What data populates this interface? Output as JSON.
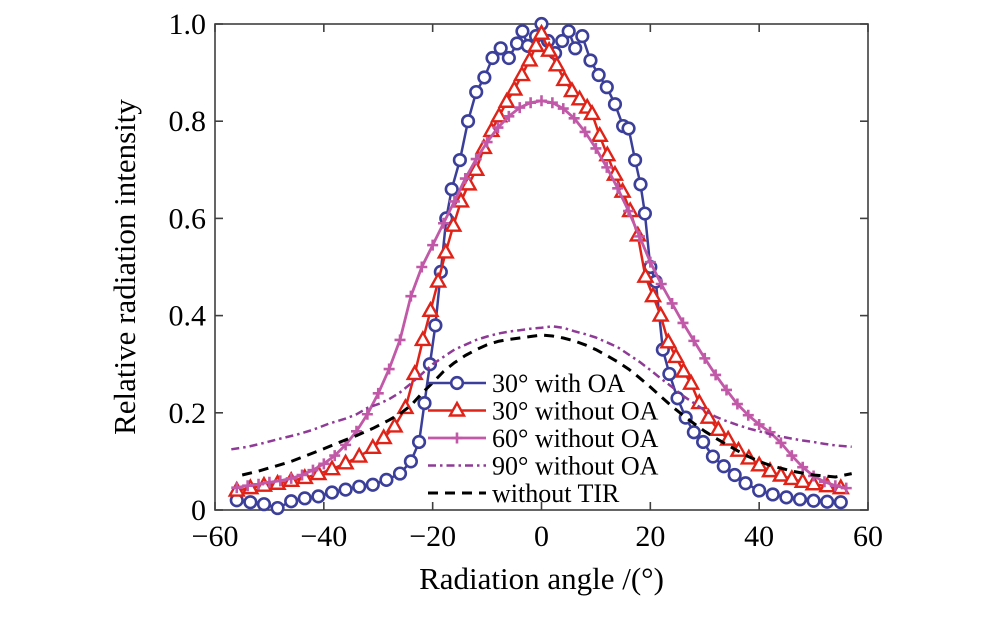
{
  "figure": {
    "background": "#ffffff"
  },
  "chart_data": {
    "type": "line",
    "title": "",
    "xlabel": "Radiation angle /(°)",
    "ylabel": "Relative radiation intensity",
    "xlim": [
      -60,
      60
    ],
    "ylim": [
      0,
      1.0
    ],
    "grid": false,
    "legend_position": "inside, lower middle-right, no frame",
    "axis_color": "#3f3f3f",
    "xticks": {
      "values": [
        -60,
        -40,
        -20,
        0,
        20,
        40,
        60
      ],
      "labels": [
        "−60",
        "−40",
        "−20",
        "0",
        "20",
        "40",
        "60"
      ]
    },
    "yticks": {
      "values": [
        0,
        0.2,
        0.4,
        0.6,
        0.8,
        1.0
      ],
      "labels": [
        "0",
        "0.2",
        "0.4",
        "0.6",
        "0.8",
        "1.0"
      ]
    },
    "series": [
      {
        "name": "30° with OA",
        "color": "#3b3f99",
        "marker": "circle",
        "line": "solid",
        "points": [
          [
            -56,
            0.02
          ],
          [
            -53.5,
            0.016
          ],
          [
            -51,
            0.012
          ],
          [
            -48.5,
            0.004
          ],
          [
            -46,
            0.018
          ],
          [
            -43.5,
            0.024
          ],
          [
            -41,
            0.028
          ],
          [
            -38.5,
            0.036
          ],
          [
            -36,
            0.042
          ],
          [
            -33.5,
            0.048
          ],
          [
            -31,
            0.052
          ],
          [
            -28.5,
            0.062
          ],
          [
            -26,
            0.075
          ],
          [
            -24,
            0.1
          ],
          [
            -22.5,
            0.14
          ],
          [
            -21.5,
            0.22
          ],
          [
            -20.5,
            0.3
          ],
          [
            -19.5,
            0.38
          ],
          [
            -18.5,
            0.49
          ],
          [
            -17.5,
            0.6
          ],
          [
            -16.5,
            0.66
          ],
          [
            -15,
            0.72
          ],
          [
            -13.5,
            0.8
          ],
          [
            -12,
            0.86
          ],
          [
            -10.5,
            0.89
          ],
          [
            -9,
            0.93
          ],
          [
            -7.5,
            0.95
          ],
          [
            -6,
            0.93
          ],
          [
            -4.5,
            0.96
          ],
          [
            -3.5,
            0.985
          ],
          [
            -2.5,
            0.955
          ],
          [
            -1,
            0.975
          ],
          [
            0,
            1.0
          ],
          [
            1.2,
            0.965
          ],
          [
            2.5,
            0.94
          ],
          [
            3.8,
            0.965
          ],
          [
            5,
            0.985
          ],
          [
            6.2,
            0.95
          ],
          [
            7.5,
            0.975
          ],
          [
            9,
            0.925
          ],
          [
            10.5,
            0.895
          ],
          [
            12,
            0.87
          ],
          [
            13.5,
            0.835
          ],
          [
            15,
            0.79
          ],
          [
            16,
            0.785
          ],
          [
            17.2,
            0.72
          ],
          [
            18.2,
            0.67
          ],
          [
            19,
            0.61
          ],
          [
            20,
            0.5
          ],
          [
            21,
            0.47
          ],
          [
            22.3,
            0.33
          ],
          [
            23.5,
            0.28
          ],
          [
            25,
            0.23
          ],
          [
            26.5,
            0.19
          ],
          [
            28,
            0.16
          ],
          [
            29.7,
            0.14
          ],
          [
            31.5,
            0.11
          ],
          [
            33.5,
            0.09
          ],
          [
            35.5,
            0.072
          ],
          [
            37.5,
            0.055
          ],
          [
            40,
            0.04
          ],
          [
            42.5,
            0.032
          ],
          [
            45,
            0.026
          ],
          [
            47.5,
            0.022
          ],
          [
            50,
            0.019
          ],
          [
            52.5,
            0.017
          ],
          [
            55,
            0.016
          ]
        ]
      },
      {
        "name": "30° without OA",
        "color": "#e02318",
        "marker": "triangle",
        "line": "solid",
        "points": [
          [
            -56,
            0.04
          ],
          [
            -53.5,
            0.045
          ],
          [
            -51,
            0.05
          ],
          [
            -48.5,
            0.054
          ],
          [
            -46,
            0.06
          ],
          [
            -43.5,
            0.066
          ],
          [
            -41,
            0.074
          ],
          [
            -38.5,
            0.084
          ],
          [
            -36,
            0.096
          ],
          [
            -33.5,
            0.11
          ],
          [
            -31,
            0.128
          ],
          [
            -29,
            0.148
          ],
          [
            -27,
            0.172
          ],
          [
            -25,
            0.21
          ],
          [
            -23.3,
            0.28
          ],
          [
            -21.8,
            0.35
          ],
          [
            -20.4,
            0.41
          ],
          [
            -19,
            0.47
          ],
          [
            -17.6,
            0.53
          ],
          [
            -16.2,
            0.585
          ],
          [
            -14.8,
            0.635
          ],
          [
            -13.4,
            0.67
          ],
          [
            -12,
            0.7
          ],
          [
            -10.6,
            0.745
          ],
          [
            -9.2,
            0.78
          ],
          [
            -7.8,
            0.81
          ],
          [
            -6.4,
            0.84
          ],
          [
            -5,
            0.865
          ],
          [
            -3.6,
            0.895
          ],
          [
            -2.2,
            0.925
          ],
          [
            -1,
            0.955
          ],
          [
            0,
            0.98
          ],
          [
            1.4,
            0.945
          ],
          [
            2.8,
            0.915
          ],
          [
            4.2,
            0.885
          ],
          [
            5.6,
            0.862
          ],
          [
            7,
            0.845
          ],
          [
            8.4,
            0.828
          ],
          [
            9.3,
            0.815
          ],
          [
            10.7,
            0.77
          ],
          [
            12.1,
            0.73
          ],
          [
            13.5,
            0.69
          ],
          [
            14.9,
            0.655
          ],
          [
            16.3,
            0.615
          ],
          [
            17.7,
            0.565
          ],
          [
            19.1,
            0.48
          ],
          [
            20.5,
            0.44
          ],
          [
            21.9,
            0.4
          ],
          [
            23.3,
            0.345
          ],
          [
            24.7,
            0.315
          ],
          [
            26.1,
            0.285
          ],
          [
            27.5,
            0.26
          ],
          [
            29,
            0.22
          ],
          [
            30.7,
            0.19
          ],
          [
            32.5,
            0.165
          ],
          [
            34.3,
            0.145
          ],
          [
            36.2,
            0.122
          ],
          [
            38.1,
            0.106
          ],
          [
            40,
            0.092
          ],
          [
            42,
            0.08
          ],
          [
            44,
            0.071
          ],
          [
            46,
            0.064
          ],
          [
            48,
            0.058
          ],
          [
            50,
            0.053
          ],
          [
            52.5,
            0.049
          ],
          [
            55,
            0.045
          ]
        ]
      },
      {
        "name": "60° without OA",
        "color": "#c159a8",
        "marker": "plus",
        "line": "solid",
        "points": [
          [
            -56,
            0.046
          ],
          [
            -54,
            0.05
          ],
          [
            -52,
            0.053
          ],
          [
            -50,
            0.057
          ],
          [
            -48,
            0.06
          ],
          [
            -46,
            0.065
          ],
          [
            -44,
            0.072
          ],
          [
            -42,
            0.082
          ],
          [
            -40,
            0.095
          ],
          [
            -38,
            0.112
          ],
          [
            -36,
            0.134
          ],
          [
            -34,
            0.162
          ],
          [
            -32,
            0.197
          ],
          [
            -30,
            0.24
          ],
          [
            -28,
            0.29
          ],
          [
            -26,
            0.35
          ],
          [
            -24,
            0.44
          ],
          [
            -22,
            0.5
          ],
          [
            -20,
            0.545
          ],
          [
            -18,
            0.59
          ],
          [
            -16,
            0.635
          ],
          [
            -14,
            0.682
          ],
          [
            -12,
            0.722
          ],
          [
            -10,
            0.757
          ],
          [
            -8,
            0.787
          ],
          [
            -6,
            0.81
          ],
          [
            -4,
            0.828
          ],
          [
            -2,
            0.838
          ],
          [
            0,
            0.842
          ],
          [
            2,
            0.838
          ],
          [
            4,
            0.826
          ],
          [
            6,
            0.806
          ],
          [
            8,
            0.778
          ],
          [
            10,
            0.744
          ],
          [
            12,
            0.705
          ],
          [
            14,
            0.662
          ],
          [
            16,
            0.615
          ],
          [
            18,
            0.563
          ],
          [
            20,
            0.51
          ],
          [
            22,
            0.465
          ],
          [
            24,
            0.425
          ],
          [
            26,
            0.385
          ],
          [
            28,
            0.348
          ],
          [
            30,
            0.312
          ],
          [
            32,
            0.278
          ],
          [
            34,
            0.247
          ],
          [
            36,
            0.218
          ],
          [
            38,
            0.195
          ],
          [
            40,
            0.176
          ],
          [
            42,
            0.16
          ],
          [
            44,
            0.138
          ],
          [
            46,
            0.112
          ],
          [
            48,
            0.088
          ],
          [
            50,
            0.07
          ],
          [
            52,
            0.058
          ],
          [
            54,
            0.05
          ],
          [
            56,
            0.045
          ]
        ]
      },
      {
        "name": "90° without OA",
        "color": "#8e3a96",
        "marker": "none",
        "line": "dash-dot",
        "points": [
          [
            -57,
            0.125
          ],
          [
            -54,
            0.13
          ],
          [
            -51,
            0.138
          ],
          [
            -48,
            0.147
          ],
          [
            -45,
            0.155
          ],
          [
            -42,
            0.165
          ],
          [
            -39,
            0.178
          ],
          [
            -36,
            0.188
          ],
          [
            -34,
            0.197
          ],
          [
            -32,
            0.21
          ],
          [
            -30,
            0.218
          ],
          [
            -28,
            0.228
          ],
          [
            -26,
            0.242
          ],
          [
            -24,
            0.26
          ],
          [
            -22,
            0.28
          ],
          [
            -20,
            0.3
          ],
          [
            -18,
            0.315
          ],
          [
            -16,
            0.33
          ],
          [
            -14,
            0.34
          ],
          [
            -12,
            0.35
          ],
          [
            -10,
            0.357
          ],
          [
            -8,
            0.363
          ],
          [
            -6,
            0.367
          ],
          [
            -4,
            0.37
          ],
          [
            -2,
            0.373
          ],
          [
            0,
            0.375
          ],
          [
            2,
            0.378
          ],
          [
            4,
            0.375
          ],
          [
            6,
            0.368
          ],
          [
            8,
            0.362
          ],
          [
            10,
            0.355
          ],
          [
            12,
            0.345
          ],
          [
            14,
            0.335
          ],
          [
            16,
            0.32
          ],
          [
            18,
            0.305
          ],
          [
            20,
            0.288
          ],
          [
            22,
            0.27
          ],
          [
            24,
            0.253
          ],
          [
            26,
            0.235
          ],
          [
            28,
            0.22
          ],
          [
            30,
            0.205
          ],
          [
            32,
            0.192
          ],
          [
            34,
            0.183
          ],
          [
            36,
            0.175
          ],
          [
            38,
            0.168
          ],
          [
            40,
            0.162
          ],
          [
            42,
            0.156
          ],
          [
            44,
            0.151
          ],
          [
            46,
            0.147
          ],
          [
            48,
            0.143
          ],
          [
            50,
            0.14
          ],
          [
            52,
            0.136
          ],
          [
            54,
            0.133
          ],
          [
            57,
            0.13
          ]
        ]
      },
      {
        "name": "without TIR",
        "color": "#000000",
        "marker": "none",
        "line": "dashed",
        "points": [
          [
            -55,
            0.072
          ],
          [
            -52,
            0.08
          ],
          [
            -49,
            0.09
          ],
          [
            -46,
            0.1
          ],
          [
            -43,
            0.113
          ],
          [
            -40,
            0.126
          ],
          [
            -37,
            0.14
          ],
          [
            -34,
            0.153
          ],
          [
            -31,
            0.168
          ],
          [
            -28,
            0.185
          ],
          [
            -26,
            0.198
          ],
          [
            -24,
            0.215
          ],
          [
            -22,
            0.24
          ],
          [
            -20,
            0.262
          ],
          [
            -18,
            0.285
          ],
          [
            -16,
            0.303
          ],
          [
            -14,
            0.318
          ],
          [
            -12,
            0.33
          ],
          [
            -10,
            0.34
          ],
          [
            -8,
            0.347
          ],
          [
            -6,
            0.351
          ],
          [
            -4,
            0.354
          ],
          [
            -2,
            0.357
          ],
          [
            0,
            0.36
          ],
          [
            2,
            0.358
          ],
          [
            4,
            0.354
          ],
          [
            6,
            0.348
          ],
          [
            8,
            0.34
          ],
          [
            10,
            0.33
          ],
          [
            12,
            0.318
          ],
          [
            14,
            0.305
          ],
          [
            16,
            0.29
          ],
          [
            18,
            0.272
          ],
          [
            20,
            0.253
          ],
          [
            22,
            0.233
          ],
          [
            24,
            0.213
          ],
          [
            26,
            0.195
          ],
          [
            28,
            0.178
          ],
          [
            30,
            0.162
          ],
          [
            32,
            0.148
          ],
          [
            34,
            0.135
          ],
          [
            36,
            0.122
          ],
          [
            38,
            0.11
          ],
          [
            40,
            0.1
          ],
          [
            42,
            0.092
          ],
          [
            44,
            0.086
          ],
          [
            46,
            0.08
          ],
          [
            48,
            0.076
          ],
          [
            50,
            0.072
          ],
          [
            52,
            0.07
          ],
          [
            54,
            0.068
          ],
          [
            57,
            0.075
          ]
        ]
      }
    ]
  }
}
